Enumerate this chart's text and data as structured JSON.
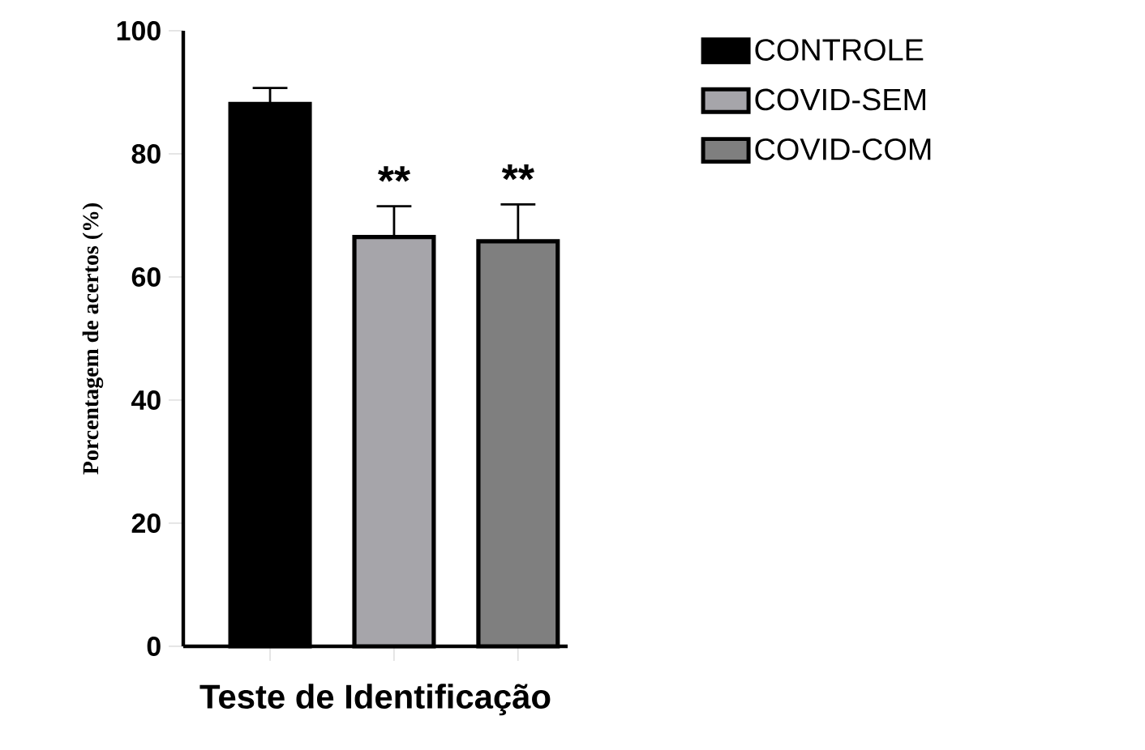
{
  "chart_data": {
    "type": "bar",
    "xlabel": "Teste de Identificação",
    "ylabel": "Porcentagem de acertos (%)",
    "categories": [
      null,
      null,
      null
    ],
    "series": [
      {
        "name": "CONTROLE",
        "color": "#000000",
        "values": [
          88.1,
          null,
          null
        ],
        "errors": [
          2.6,
          null,
          null
        ]
      },
      {
        "name": "COVID-SEM",
        "color": "#a6a5aa",
        "values": [
          null,
          66.5,
          null
        ],
        "errors": [
          null,
          5.0,
          null
        ]
      },
      {
        "name": "COVID-COM",
        "color": "#7f7f7f",
        "values": [
          null,
          null,
          65.8
        ],
        "errors": [
          null,
          null,
          6.0
        ]
      }
    ],
    "ylim": [
      0,
      100
    ],
    "yticks": [
      0,
      20,
      40,
      60,
      80,
      100
    ],
    "annotations": [
      "**",
      "**"
    ],
    "grid": false,
    "legend": "top right"
  }
}
